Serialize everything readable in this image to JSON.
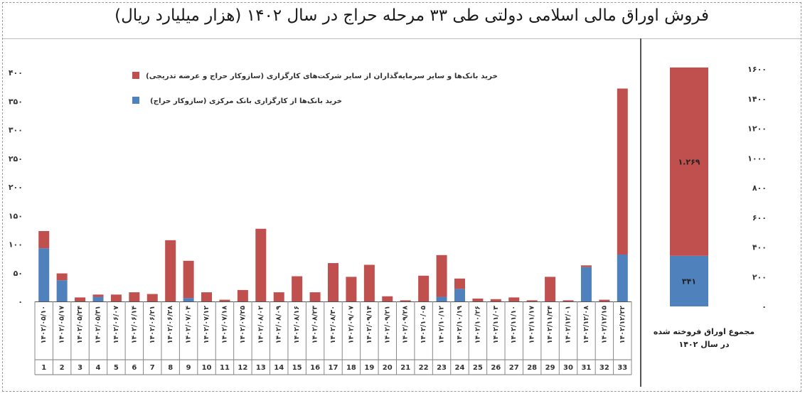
{
  "title": "فروش اوراق مالی اسلامی دولتی طی ۳۳ مرحله حراج در سال ۱۴۰۲ (هزار میلیارد ریال)",
  "colors": {
    "red": "#c0504d",
    "blue": "#4f81bd",
    "axis": "#555555"
  },
  "chart_data": [
    {
      "type": "bar",
      "stacked": true,
      "ylim": [
        0,
        400
      ],
      "ytick_labels": [
        "۴۰۰",
        "۳۵۰",
        "۳۰۰",
        "۲۵۰",
        "۲۰۰",
        "۱۵۰",
        "۱۰۰",
        "۵۰",
        "۰"
      ],
      "legend_position": "top-center",
      "series": [
        {
          "name": "خرید بانک‌ها و سایر سرمایه‌گذاران از سایر شرکت‌های کارگزاری (سازوکار حراج و عرضه تدریجی)",
          "color": "#c0504d",
          "values": [
            30,
            12,
            7,
            4,
            12,
            16,
            13,
            107,
            65,
            16,
            3,
            20,
            127,
            16,
            44,
            16,
            67,
            43,
            64,
            9,
            2,
            45,
            73,
            18,
            5,
            4,
            7,
            2,
            43,
            2,
            3,
            3,
            290
          ]
        },
        {
          "name": "خرید بانک‌ها از کارگزاری بانک مرکزی (سازوکار حراج)",
          "color": "#4f81bd",
          "values": [
            93,
            37,
            0,
            8,
            0,
            0,
            0,
            0,
            6,
            0,
            0,
            0,
            0,
            0,
            0,
            0,
            0,
            0,
            0,
            0,
            0,
            0,
            8,
            22,
            0,
            0,
            0,
            0,
            0,
            0,
            60,
            0,
            82
          ]
        }
      ],
      "categories": [
        "۱۴۰۲/۰۵/۱۰",
        "۱۴۰۲/۰۵/۱۷",
        "۱۴۰۲/۰۵/۲۴",
        "۱۴۰۲/۰۵/۳۱",
        "۱۴۰۲/۰۶/۰۷",
        "۱۴۰۲/۰۶/۱۴",
        "۱۴۰۲/۰۶/۲۱",
        "۱۴۰۲/۰۶/۲۸",
        "۱۴۰۲/۰۷/۰۴",
        "۱۴۰۲/۰۷/۱۲",
        "۱۴۰۲/۰۷/۱۸",
        "۱۴۰۲/۰۷/۲۵",
        "۱۴۰۲/۰۸/۰۲",
        "۱۴۰۲/۰۸/۰۹",
        "۱۴۰۲/۰۸/۱۶",
        "۱۴۰۲/۰۸/۲۳",
        "۱۴۰۲/۰۸/۳۰",
        "۱۴۰۲/۰۹/۰۷",
        "۱۴۰۲/۰۹/۱۴",
        "۱۴۰۲/۰۹/۲۱",
        "۱۴۰۲/۰۹/۲۸",
        "۱۴۰۲/۱۰/۰۵",
        "۱۴۰۲/۱۰/۱۲",
        "۱۴۰۲/۱۰/۱۹",
        "۱۴۰۲/۱۰/۲۶",
        "۱۴۰۲/۱۱/۰۳",
        "۱۴۰۲/۱۱/۱۰",
        "۱۴۰۲/۱۱/۱۷",
        "۱۴۰۲/۱۱/۲۴",
        "۱۴۰۲/۱۲/۰۱",
        "۱۴۰۲/۱۲/۰۸",
        "۱۴۰۲/۱۲/۱۵",
        "۱۴۰۲/۱۲/۲۲"
      ],
      "stage_numbers": [
        "1",
        "2",
        "3",
        "4",
        "5",
        "6",
        "7",
        "8",
        "9",
        "10",
        "11",
        "12",
        "13",
        "14",
        "15",
        "16",
        "17",
        "18",
        "19",
        "20",
        "21",
        "22",
        "23",
        "24",
        "25",
        "26",
        "27",
        "28",
        "29",
        "30",
        "31",
        "32",
        "33"
      ]
    },
    {
      "type": "bar",
      "stacked": true,
      "ylim": [
        0,
        1600
      ],
      "ytick_labels": [
        "۱۶۰۰",
        "۱۴۰۰",
        "۱۲۰۰",
        "۱۰۰۰",
        "۸۰۰",
        "۶۰۰",
        "۴۰۰",
        "۲۰۰",
        "۰"
      ],
      "categories": [
        "مجموع اوراق فروخته شده در سال ۱۴۰۲"
      ],
      "series": [
        {
          "color": "#4f81bd",
          "values": [
            341
          ],
          "label": "۳۴۱"
        },
        {
          "color": "#c0504d",
          "values": [
            1269
          ],
          "label": "۱.۲۶۹"
        }
      ]
    }
  ]
}
